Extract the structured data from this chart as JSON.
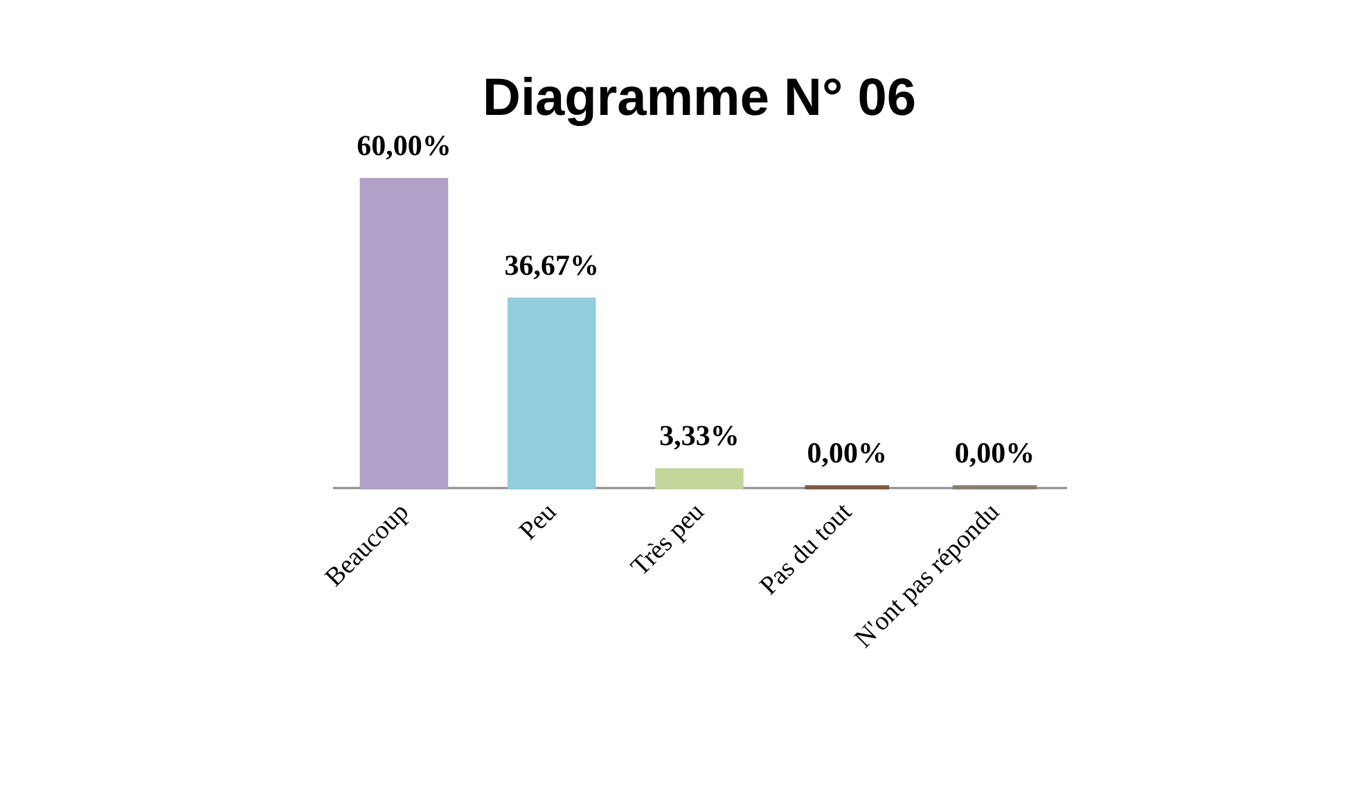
{
  "chart_data": {
    "type": "bar",
    "title": "Diagramme N° 06",
    "categories": [
      "Beaucoup",
      "Peu",
      "Très peu",
      "Pas du tout",
      "N'ont pas répondu"
    ],
    "values": [
      60,
      36.67,
      3.33,
      0,
      0
    ],
    "colors": [
      "#b1a0c7",
      "#92cddc",
      "#c3d69b",
      "#7f5a43",
      "#8a7f6e"
    ],
    "value_labels": [
      "60,00%",
      "36,67%",
      "3,33%",
      "0,00%",
      "0,00%"
    ],
    "tick_labels": "x"
  }
}
